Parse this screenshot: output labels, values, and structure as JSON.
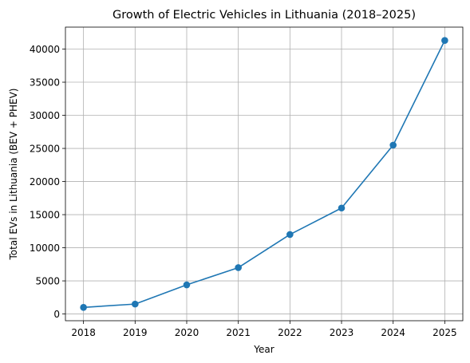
{
  "chart_data": {
    "type": "line",
    "title": "Growth of Electric Vehicles in Lithuania (2018–2025)",
    "xlabel": "Year",
    "ylabel": "Total EVs in Lithuania (BEV + PHEV)",
    "x": [
      2018,
      2019,
      2020,
      2021,
      2022,
      2023,
      2024,
      2025
    ],
    "x_tick_labels": [
      "2018",
      "2019",
      "2020",
      "2021",
      "2022",
      "2023",
      "2024",
      "2025"
    ],
    "series": [
      {
        "values": [
          1000,
          1500,
          4400,
          7000,
          12000,
          16000,
          25500,
          41300
        ],
        "color": "#1f77b4",
        "marker": "circle"
      }
    ],
    "y_ticks": [
      0,
      5000,
      10000,
      15000,
      20000,
      25000,
      30000,
      35000,
      40000
    ],
    "y_tick_labels": [
      "0",
      "5000",
      "10000",
      "15000",
      "20000",
      "25000",
      "30000",
      "35000",
      "40000"
    ],
    "xlim": [
      2017.65,
      2025.35
    ],
    "ylim": [
      -1015,
      43315
    ],
    "grid": true
  }
}
